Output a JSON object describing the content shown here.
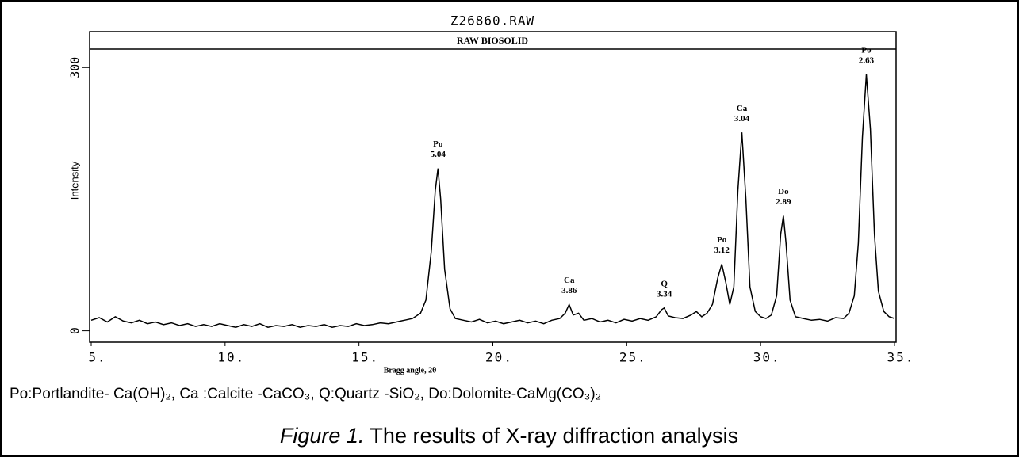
{
  "chart_data": {
    "type": "line",
    "title": "Z26860.RAW",
    "subtitle": "RAW BIOSOLID",
    "y_label": "Intensity",
    "x_label": "Bragg angle, 2θ",
    "xlim": [
      5,
      35
    ],
    "ylim": [
      -13,
      321
    ],
    "xticks": [
      {
        "value": 5,
        "label": "5."
      },
      {
        "value": 10,
        "label": "10."
      },
      {
        "value": 15,
        "label": "15."
      },
      {
        "value": 20,
        "label": "20."
      },
      {
        "value": 25,
        "label": "25."
      },
      {
        "value": 30,
        "label": "30."
      },
      {
        "value": 35,
        "label": "35."
      }
    ],
    "yticks": [
      0,
      300
    ],
    "grid": false,
    "x": [
      5.0,
      5.3,
      5.6,
      5.9,
      6.2,
      6.5,
      6.8,
      7.1,
      7.4,
      7.7,
      8.0,
      8.3,
      8.6,
      8.9,
      9.2,
      9.5,
      9.8,
      10.1,
      10.4,
      10.7,
      11.0,
      11.3,
      11.6,
      11.9,
      12.2,
      12.5,
      12.8,
      13.1,
      13.4,
      13.7,
      14.0,
      14.3,
      14.6,
      14.9,
      15.2,
      15.5,
      15.8,
      16.1,
      16.4,
      16.7,
      17.0,
      17.3,
      17.5,
      17.7,
      17.85,
      17.95,
      18.05,
      18.2,
      18.4,
      18.6,
      18.9,
      19.2,
      19.5,
      19.8,
      20.1,
      20.4,
      20.7,
      21.0,
      21.3,
      21.6,
      21.9,
      22.2,
      22.5,
      22.7,
      22.85,
      23.0,
      23.2,
      23.4,
      23.7,
      24.0,
      24.3,
      24.6,
      24.9,
      25.2,
      25.5,
      25.8,
      26.1,
      26.3,
      26.4,
      26.55,
      26.8,
      27.1,
      27.4,
      27.6,
      27.8,
      28.0,
      28.2,
      28.4,
      28.55,
      28.7,
      28.85,
      29.0,
      29.15,
      29.3,
      29.45,
      29.6,
      29.8,
      30.0,
      30.2,
      30.4,
      30.6,
      30.75,
      30.85,
      30.95,
      31.1,
      31.3,
      31.6,
      31.9,
      32.2,
      32.5,
      32.8,
      33.1,
      33.3,
      33.5,
      33.65,
      33.8,
      33.95,
      34.1,
      34.25,
      34.4,
      34.6,
      34.8,
      35.0
    ],
    "series": [
      {
        "name": "Intensity",
        "color": "#000000",
        "values": [
          12,
          15,
          10,
          16,
          11,
          9,
          12,
          8,
          10,
          7,
          9,
          6,
          8,
          5,
          7,
          5,
          8,
          6,
          4,
          7,
          5,
          8,
          4,
          6,
          5,
          7,
          4,
          6,
          5,
          7,
          4,
          6,
          5,
          8,
          6,
          7,
          9,
          8,
          10,
          12,
          14,
          20,
          35,
          90,
          160,
          185,
          150,
          70,
          25,
          14,
          12,
          10,
          13,
          9,
          11,
          8,
          10,
          12,
          9,
          11,
          8,
          12,
          14,
          20,
          30,
          18,
          20,
          12,
          14,
          10,
          12,
          9,
          13,
          11,
          14,
          12,
          16,
          24,
          26,
          17,
          15,
          14,
          18,
          22,
          16,
          20,
          30,
          60,
          76,
          55,
          30,
          50,
          160,
          226,
          150,
          50,
          22,
          16,
          14,
          18,
          40,
          110,
          131,
          100,
          35,
          16,
          14,
          12,
          13,
          11,
          15,
          14,
          20,
          40,
          100,
          220,
          292,
          230,
          110,
          45,
          22,
          16,
          14
        ]
      }
    ],
    "annotations": [
      {
        "phase": "Po",
        "d_spacing": "5.04",
        "x": 17.95
      },
      {
        "phase": "Ca",
        "d_spacing": "3.86",
        "x": 22.85
      },
      {
        "phase": "Q",
        "d_spacing": "3.34",
        "x": 26.4
      },
      {
        "phase": "Po",
        "d_spacing": "3.12",
        "x": 28.55
      },
      {
        "phase": "Ca",
        "d_spacing": "3.04",
        "x": 29.3
      },
      {
        "phase": "Do",
        "d_spacing": "2.89",
        "x": 30.85
      },
      {
        "phase": "Po",
        "d_spacing": "2.63",
        "x": 33.95
      }
    ],
    "legend_text": "Po:Portlandite- Ca(OH)₂,  Ca :Calcite -CaCO₃, Q:Quartz -SiO₂, Do:Dolomite-CaMg(CO₃)₂",
    "caption": {
      "label": "Figure 1.",
      "text": " The results of X-ray diffraction analysis"
    }
  }
}
